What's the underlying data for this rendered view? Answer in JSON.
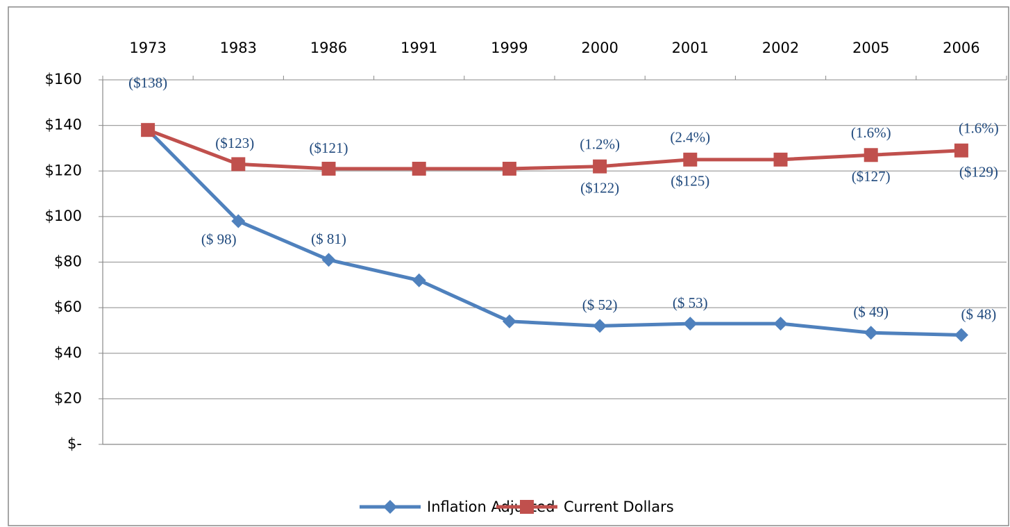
{
  "chart_data": {
    "type": "line",
    "categories": [
      "1973",
      "1983",
      "1986",
      "1991",
      "1999",
      "2000",
      "2001",
      "2002",
      "2005",
      "2006"
    ],
    "series": [
      {
        "name": "Inflation Adjusted",
        "color": "#4f81bd",
        "marker": "diamond",
        "values": [
          138,
          98,
          81,
          72,
          54,
          52,
          53,
          53,
          49,
          48
        ],
        "value_labels": [
          null,
          "($ 98)",
          "($ 81)",
          null,
          null,
          "($ 52)",
          "($ 53)",
          null,
          "($ 49)",
          "($ 48)"
        ]
      },
      {
        "name": "Current Dollars",
        "color": "#c0504d",
        "marker": "square",
        "values": [
          138,
          123,
          121,
          121,
          121,
          122,
          125,
          125,
          127,
          129
        ],
        "value_labels": [
          "($138)",
          "($123)",
          "($121)",
          null,
          null,
          "($122)",
          "($125)",
          null,
          "($127)",
          "($129)"
        ]
      }
    ],
    "annotations": [
      null,
      null,
      null,
      null,
      null,
      "(1.2%)",
      "(2.4%)",
      null,
      "(1.6%)",
      "(1.6%)"
    ],
    "ylim": [
      0,
      160
    ],
    "yticks": [
      {
        "value": 0,
        "label": "$-"
      },
      {
        "value": 20,
        "label": "$20"
      },
      {
        "value": 40,
        "label": "$40"
      },
      {
        "value": 60,
        "label": "$60"
      },
      {
        "value": 80,
        "label": "$80"
      },
      {
        "value": 100,
        "label": "$100"
      },
      {
        "value": 120,
        "label": "$120"
      },
      {
        "value": 140,
        "label": "$140"
      },
      {
        "value": 160,
        "label": "$160"
      }
    ],
    "grid": true,
    "legend": "bottom"
  }
}
